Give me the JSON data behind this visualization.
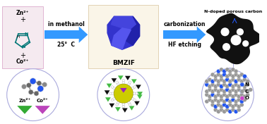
{
  "bg_color": "#ffffff",
  "arrow_color": "#3399ff",
  "arrow1_text1": "in methanol",
  "arrow1_text2": "25°  C",
  "arrow2_text1": "carbonization",
  "arrow2_text2": "HF etching",
  "label_bmzif": "BMZIF",
  "label_ndoped": "N-doped porous carbon",
  "label_zn": "Zn²⁺",
  "label_co": "Co²⁺",
  "reactant_bg": "#f5eaf0",
  "bmzif_bg": "#faf5e8",
  "circle_edge": "#aaaadd",
  "zn_color": "#33aa33",
  "co_color": "#bb44bb",
  "bmzif_top": "#4444dd",
  "bmzif_right": "#2222aa",
  "bmzif_left": "#3333cc",
  "bmzif_front": "#5555ee",
  "carbon_color": "#111111",
  "N_atom_color": "#2255ee",
  "C_atom_color": "#999999",
  "O_atom_color": "#cc44cc",
  "mof_yellow": "#cccc00",
  "mof_green": "#44bb44",
  "mof_black": "#111111",
  "mof_purple": "#9922bb",
  "connect_line": "#aaaadd",
  "text_teal": "#007777"
}
